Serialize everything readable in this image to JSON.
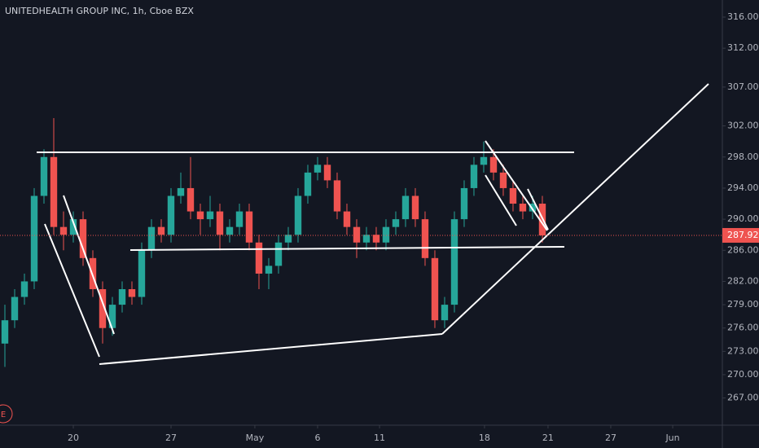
{
  "chart_data": {
    "type": "candlestick",
    "title": "UNITEDHEALTH GROUP INC, 1h, Cboe BZX",
    "x": [
      0,
      0.5,
      1,
      1.5,
      2,
      2.5,
      3,
      3.5,
      4,
      4.5,
      5,
      5.5,
      6,
      6.5,
      7,
      7.5,
      8,
      8.5,
      9,
      9.5,
      10,
      10.5,
      11,
      11.5,
      12,
      12.5,
      13,
      13.5,
      14,
      14.5,
      15,
      15.5,
      16,
      16.5,
      17,
      17.5,
      18,
      18.5,
      19,
      19.5,
      20,
      20.5,
      21,
      21.5,
      22,
      22.5,
      23,
      23.5,
      24,
      24.5,
      25,
      25.5,
      26,
      26.5,
      27,
      27.5
    ],
    "open": [
      274,
      277,
      280,
      282,
      293,
      298,
      289,
      288,
      290,
      285,
      281,
      276,
      279,
      281,
      280,
      286,
      289,
      288,
      293,
      294,
      291,
      290,
      291,
      288,
      289,
      291,
      287,
      283,
      284,
      287,
      288,
      293,
      296,
      297,
      295,
      291,
      289,
      287,
      288,
      287,
      289,
      290,
      293,
      290,
      285,
      277,
      279,
      290,
      294,
      297,
      298,
      296,
      294,
      292,
      291,
      292
    ],
    "high": [
      279,
      281,
      283,
      294,
      299,
      303,
      291,
      291,
      291,
      286,
      282,
      280,
      282,
      282,
      287,
      290,
      290,
      294,
      296,
      298,
      292,
      293,
      292,
      290,
      292,
      292,
      288,
      285,
      288,
      289,
      294,
      297,
      298,
      298,
      296,
      292,
      290,
      289,
      289,
      290,
      291,
      294,
      294,
      291,
      286,
      280,
      291,
      295,
      298,
      300,
      299,
      297,
      295,
      293,
      293,
      293
    ],
    "low": [
      271,
      276,
      279,
      281,
      292,
      288,
      286,
      287,
      284,
      280,
      274,
      275,
      278,
      279,
      279,
      285,
      287,
      287,
      292,
      290,
      288,
      289,
      286,
      287,
      288,
      286,
      281,
      281,
      283,
      286,
      287,
      292,
      295,
      294,
      290,
      288,
      285,
      286,
      286,
      286,
      288,
      289,
      289,
      284,
      276,
      276,
      278,
      289,
      293,
      296,
      295,
      293,
      291,
      290,
      290,
      287
    ],
    "close": [
      277,
      280,
      282,
      293,
      298,
      289,
      288,
      290,
      285,
      281,
      276,
      279,
      281,
      280,
      286,
      289,
      288,
      293,
      294,
      291,
      290,
      291,
      288,
      289,
      291,
      287,
      283,
      284,
      287,
      288,
      293,
      296,
      297,
      295,
      291,
      289,
      287,
      288,
      287,
      289,
      290,
      293,
      290,
      285,
      277,
      279,
      290,
      294,
      297,
      298,
      296,
      294,
      292,
      291,
      292,
      287.92
    ],
    "up_color": "#26a69a",
    "down_color": "#ef5350",
    "xlim": [
      -0.25,
      36.71
    ],
    "xticks": [
      {
        "value": 3.5,
        "label": "20"
      },
      {
        "value": 8.5,
        "label": "27"
      },
      {
        "value": 12.79,
        "label": "May"
      },
      {
        "value": 16,
        "label": "6"
      },
      {
        "value": 19.17,
        "label": "11"
      },
      {
        "value": 24.54,
        "label": "18"
      },
      {
        "value": 27.79,
        "label": "21"
      },
      {
        "value": 31,
        "label": "27"
      },
      {
        "value": 34.17,
        "label": "Jun"
      }
    ],
    "ylim": [
      263.5,
      318.2
    ],
    "yticks": [
      {
        "value": 316,
        "label": "316.00"
      },
      {
        "value": 312,
        "label": "312.00"
      },
      {
        "value": 307,
        "label": "307.00"
      },
      {
        "value": 302,
        "label": "302.00"
      },
      {
        "value": 298,
        "label": "298.00"
      },
      {
        "value": 294,
        "label": "294.00"
      },
      {
        "value": 290,
        "label": "290.00"
      },
      {
        "value": 286,
        "label": "286.00"
      },
      {
        "value": 282,
        "label": "282.00"
      },
      {
        "value": 279,
        "label": "279.00"
      },
      {
        "value": 276,
        "label": "276.00"
      },
      {
        "value": 273,
        "label": "273.00"
      },
      {
        "value": 270,
        "label": "270.00"
      },
      {
        "value": 267,
        "label": "267.00"
      }
    ],
    "last_price": 287.92,
    "badge": "E"
  }
}
